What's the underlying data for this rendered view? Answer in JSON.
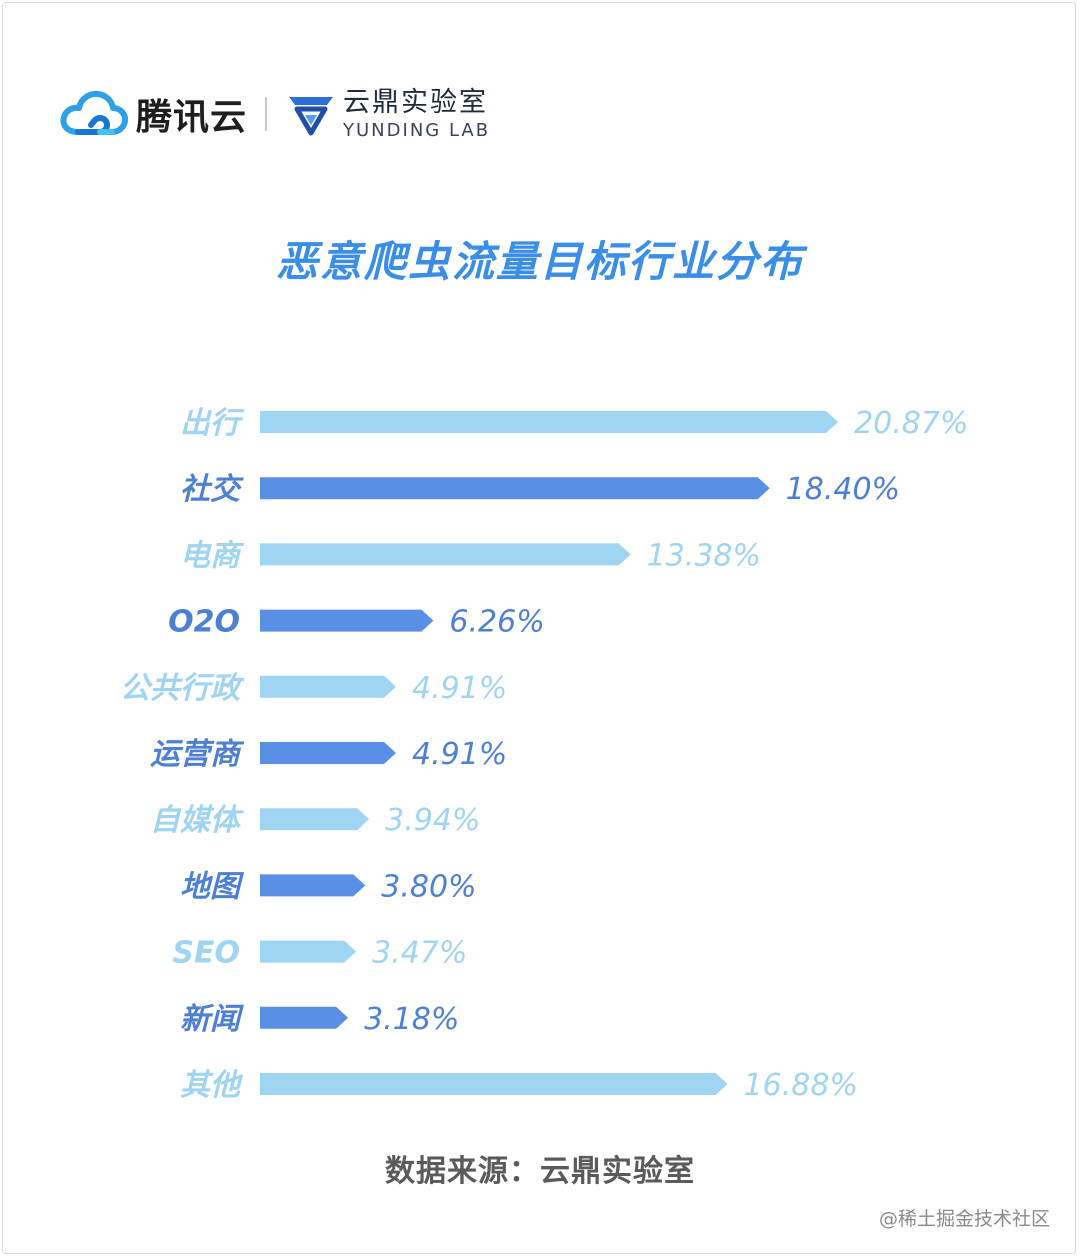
{
  "header": {
    "brand_name": "腾讯云",
    "lab_name_cn": "云鼎实验室",
    "lab_name_en": "YUNDING LAB",
    "brand_icon": "tencent-cloud-icon",
    "lab_icon": "yunding-lab-icon"
  },
  "chart_data": {
    "type": "bar",
    "orientation": "horizontal",
    "title": "恶意爬虫流量目标行业分布",
    "categories": [
      "出行",
      "社交",
      "电商",
      "O2O",
      "公共行政",
      "运营商",
      "自媒体",
      "地图",
      "SEO",
      "新闻",
      "其他"
    ],
    "values": [
      20.87,
      18.4,
      13.38,
      6.26,
      4.91,
      4.91,
      3.94,
      3.8,
      3.47,
      3.18,
      16.88
    ],
    "value_labels": [
      "20.87%",
      "18.40%",
      "13.38%",
      "6.26%",
      "4.91%",
      "4.91%",
      "3.94%",
      "3.80%",
      "3.47%",
      "3.18%",
      "16.88%"
    ],
    "unit": "%",
    "grid": false,
    "colors": {
      "light": "#9fd4f2",
      "dark": "#5a8fe6",
      "label_light": "#9fd4f2",
      "label_dark": "#4d7fd4"
    }
  },
  "footer": {
    "source": "数据来源：云鼎实验室",
    "watermark": "@稀土掘金技术社区"
  }
}
